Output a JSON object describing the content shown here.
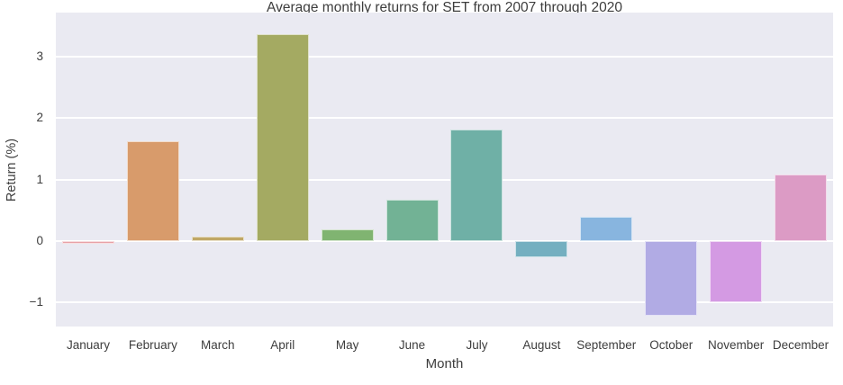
{
  "chart_data": {
    "type": "bar",
    "title": "Average monthly returns for SET from 2007 through 2020",
    "xlabel": "Month",
    "ylabel": "Return (%)",
    "categories": [
      "January",
      "February",
      "March",
      "April",
      "May",
      "June",
      "July",
      "August",
      "September",
      "October",
      "November",
      "December"
    ],
    "values": [
      -0.04,
      1.62,
      0.08,
      3.37,
      0.19,
      0.68,
      1.82,
      -0.26,
      0.4,
      -1.22,
      -0.99,
      1.08
    ],
    "bar_colors": [
      "#e8a1a6",
      "#d89b6b",
      "#c0a765",
      "#a4aa62",
      "#80b471",
      "#72b295",
      "#6fb0a6",
      "#74afc0",
      "#88b5df",
      "#b1abe4",
      "#d49ae3",
      "#dc9bc5"
    ],
    "ylim": [
      -1.39,
      3.72
    ],
    "yticks": [
      {
        "value": -1,
        "label": "−1"
      },
      {
        "value": 0,
        "label": "0"
      },
      {
        "value": 1,
        "label": "1"
      },
      {
        "value": 2,
        "label": "2"
      },
      {
        "value": 3,
        "label": "3"
      }
    ],
    "grid": true,
    "legend": false,
    "plot_bg": "#eaeaf2",
    "grid_color": "#ffffff",
    "bar_edge_color": "rgba(255,255,255,0.65)",
    "text_color": "#3d3d3d"
  }
}
